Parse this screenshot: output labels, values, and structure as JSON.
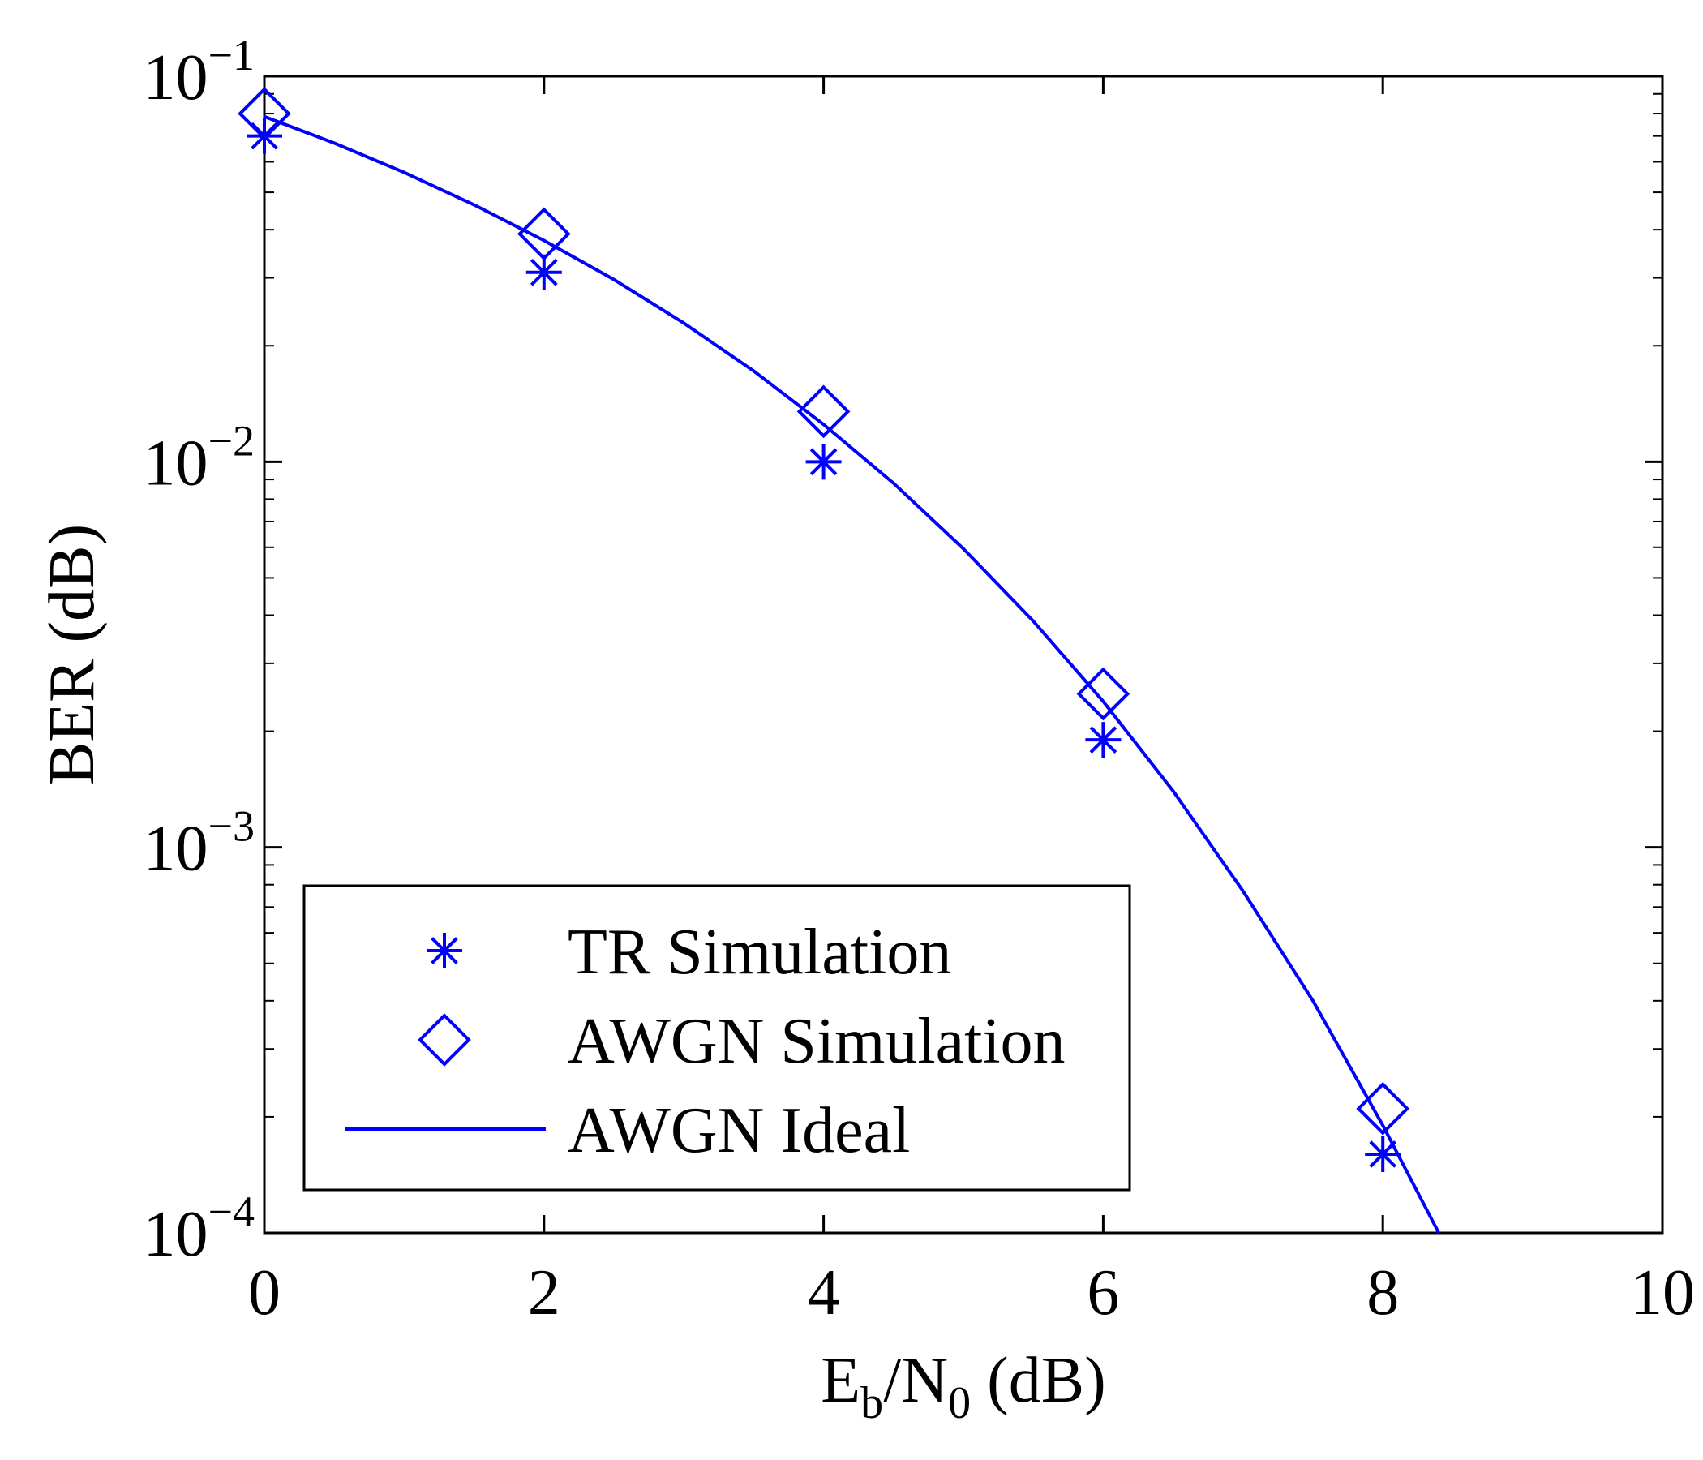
{
  "chart_data": {
    "type": "line",
    "xlabel_parts": [
      {
        "text": "E"
      },
      {
        "text": "b",
        "sub": true
      },
      {
        "text": "/N"
      },
      {
        "text": "0",
        "sub": true
      },
      {
        "text": " (dB)"
      }
    ],
    "ylabel": "BER (dB)",
    "xlim": [
      0,
      10
    ],
    "xticks": [
      0,
      2,
      4,
      6,
      8,
      10
    ],
    "ylim": [
      0.0001,
      0.1
    ],
    "log_y": true,
    "yticks": [
      {
        "value": 0.0001,
        "label": "10",
        "sup": "−4"
      },
      {
        "value": 0.001,
        "label": "10",
        "sup": "−3"
      },
      {
        "value": 0.01,
        "label": "10",
        "sup": "−2"
      },
      {
        "value": 0.1,
        "label": "10",
        "sup": "−1"
      }
    ],
    "legend": "lower left",
    "series": [
      {
        "name": "TR Simulation",
        "color": "#0000ff",
        "marker": "asterisk",
        "x": [
          0,
          2,
          4,
          6,
          8
        ],
        "values": [
          0.07,
          0.031,
          0.01,
          0.0019,
          0.00016
        ]
      },
      {
        "name": "AWGN Simulation",
        "color": "#0000ff",
        "marker": "diamond",
        "x": [
          0,
          2,
          4,
          6,
          8
        ],
        "values": [
          0.08,
          0.039,
          0.0135,
          0.0025,
          0.00021
        ]
      },
      {
        "name": "AWGN Ideal",
        "color": "#0000ff",
        "marker": "line",
        "x": [
          0,
          0.5,
          1,
          1.5,
          2,
          2.5,
          3,
          3.5,
          4,
          4.5,
          5,
          5.5,
          6,
          6.5,
          7,
          7.5,
          8,
          8.4
        ],
        "values": [
          0.0786,
          0.0671,
          0.0563,
          0.0464,
          0.0375,
          0.0297,
          0.0229,
          0.0172,
          0.0125,
          0.0088,
          0.00595,
          0.00386,
          0.00239,
          0.0014,
          0.00077,
          0.0004,
          0.00019,
          0.0001
        ]
      }
    ]
  }
}
